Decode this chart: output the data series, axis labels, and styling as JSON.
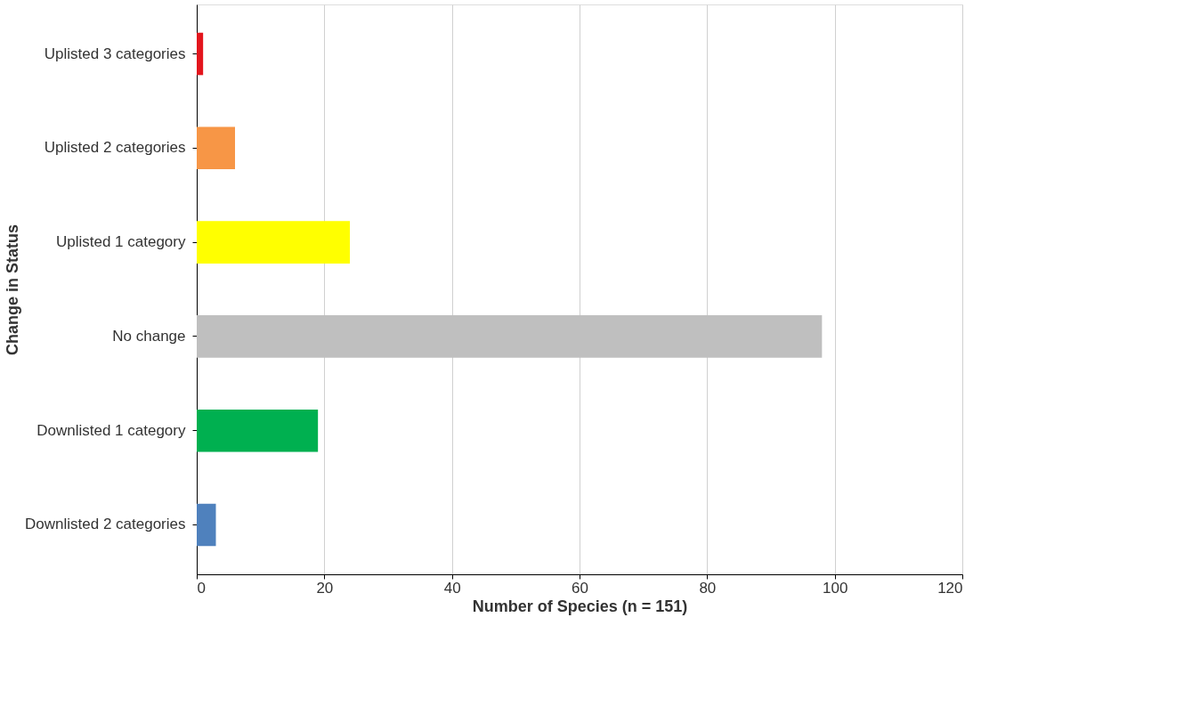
{
  "chart_data": {
    "type": "bar",
    "orientation": "horizontal",
    "xlabel": "Number of Species (n = 151)",
    "ylabel": "Change in Status",
    "categories": [
      "Uplisted 3 categories",
      "Uplisted 2 categories",
      "Uplisted 1 category",
      "No change",
      "Downlisted 1 category",
      "Downlisted 2 categories"
    ],
    "values": [
      1,
      6,
      24,
      98,
      19,
      3
    ],
    "colors": [
      "#e3161d",
      "#f79646",
      "#ffff00",
      "#bfbfbf",
      "#00b050",
      "#4f81bd"
    ],
    "xlim": [
      0,
      120
    ],
    "xticks": [
      0,
      20,
      40,
      60,
      80,
      100,
      120
    ],
    "grid": "x"
  }
}
